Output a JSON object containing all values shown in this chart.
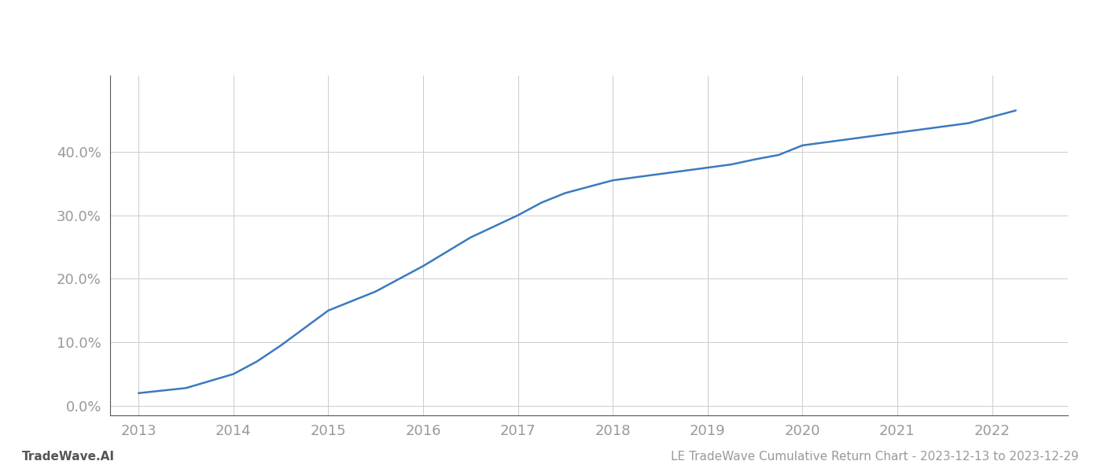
{
  "title": "LE TradeWave Cumulative Return Chart - 2023-12-13 to 2023-12-29",
  "watermark": "TradeWave.AI",
  "line_color": "#3a7abf",
  "line_width": 1.8,
  "background_color": "#ffffff",
  "grid_color": "#cccccc",
  "x_values": [
    2013,
    2013.5,
    2014,
    2014.25,
    2014.5,
    2015,
    2015.5,
    2016,
    2016.5,
    2017,
    2017.25,
    2017.5,
    2018,
    2018.25,
    2018.5,
    2019,
    2019.25,
    2019.5,
    2019.75,
    2020,
    2020.25,
    2020.5,
    2020.75,
    2021,
    2021.25,
    2021.5,
    2021.75,
    2022,
    2022.25
  ],
  "y_values": [
    2.0,
    2.8,
    5.0,
    7.0,
    9.5,
    15.0,
    18.0,
    22.0,
    26.5,
    30.0,
    32.0,
    33.5,
    35.5,
    36.0,
    36.5,
    37.5,
    38.0,
    38.8,
    39.5,
    41.0,
    41.5,
    42.0,
    42.5,
    43.0,
    43.5,
    44.0,
    44.5,
    45.5,
    46.5
  ],
  "xlim": [
    2012.7,
    2022.8
  ],
  "ylim": [
    -1.5,
    52
  ],
  "xticks": [
    2013,
    2014,
    2015,
    2016,
    2017,
    2018,
    2019,
    2020,
    2021,
    2022
  ],
  "yticks": [
    0,
    10,
    20,
    30,
    40
  ],
  "ytick_labels": [
    "0.0%",
    "10.0%",
    "20.0%",
    "30.0%",
    "40.0%"
  ],
  "tick_color": "#999999",
  "tick_fontsize": 13,
  "title_fontsize": 11,
  "watermark_fontsize": 11
}
